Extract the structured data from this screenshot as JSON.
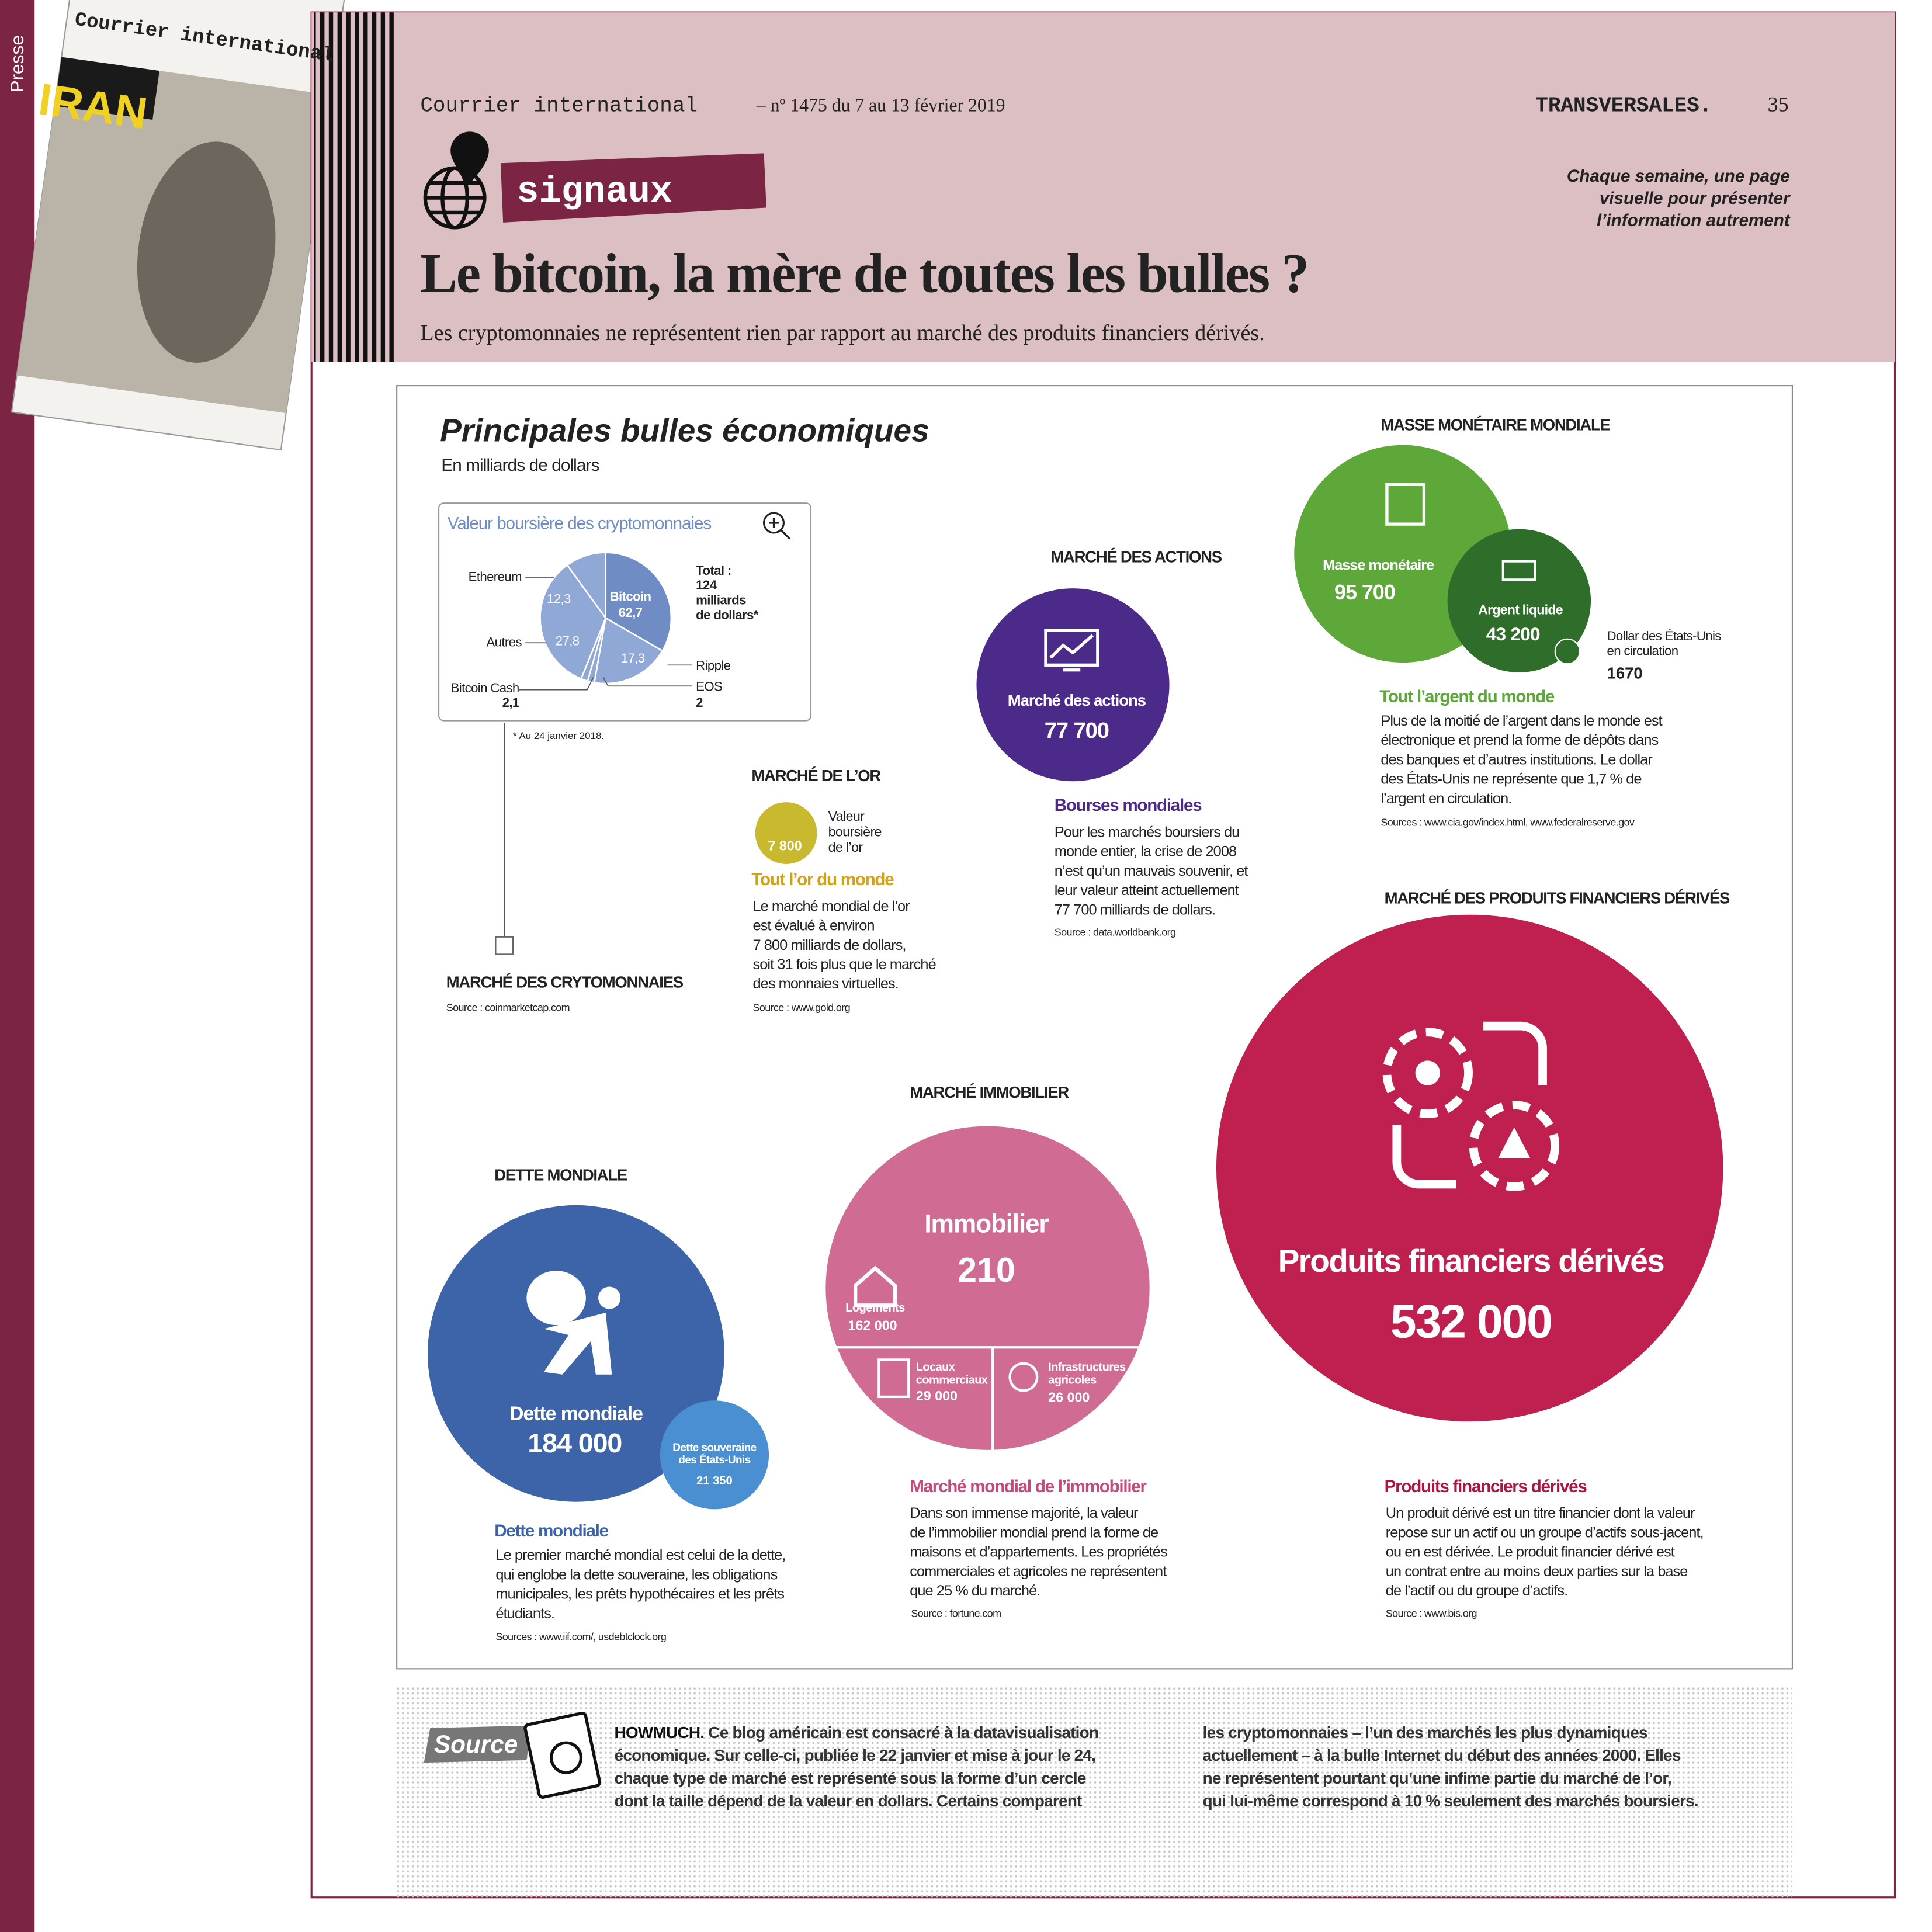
{
  "sidebar": {
    "label": "Presse"
  },
  "cover": {
    "brand": "Courrier international",
    "headline": "IRAN"
  },
  "header": {
    "publication": "Courrier international",
    "issue": "– nº 1475 du 7 au 13 février 2019",
    "section": "TRANSVERSALES.",
    "page": "35",
    "rubric": "signaux",
    "tagline": [
      "Chaque semaine, une page",
      "visuelle pour présenter",
      "l’information autrement"
    ],
    "title": "Le bitcoin, la mère de toutes les bulles ?",
    "subtitle": "Les cryptomonnaies ne représentent rien par rapport au marché des produits financiers dérivés."
  },
  "infographic": {
    "title": "Principales bulles économiques",
    "unit": "En milliards de dollars",
    "crypto": {
      "box_title": "Valeur boursière des cryptomonnaies",
      "slices": [
        {
          "label": "Bitcoin",
          "value": "62,7"
        },
        {
          "label": "Ripple",
          "value": "17,3"
        },
        {
          "label": "EOS",
          "value": "2"
        },
        {
          "label": "Bitcoin Cash",
          "value": "2,1"
        },
        {
          "label": "Autres",
          "value": "27,8"
        },
        {
          "label": "Ethereum",
          "value": "12,3"
        }
      ],
      "total": [
        "Total :",
        "124",
        "milliards",
        "de dollars*"
      ],
      "footnote": "* Au 24 janvier 2018.",
      "heading": "MARCHÉ DES CRYTOMONNAIES",
      "source": "Source : coinmarketcap.com"
    },
    "gold": {
      "heading": "MARCHÉ DE L’OR",
      "value": "7 800",
      "caption": [
        "Valeur",
        "boursière",
        "de l’or"
      ],
      "subheading": "Tout l’or du monde",
      "text": [
        "Le marché mondial de l’or",
        "est évalué à environ",
        "7 800 milliards de dollars,",
        "soit 31 fois plus que le marché",
        "des monnaies virtuelles."
      ],
      "source": "Source : www.gold.org"
    },
    "stocks": {
      "heading": "MARCHÉ DES ACTIONS",
      "label": "Marché des actions",
      "value": "77 700",
      "subheading": "Bourses mondiales",
      "text": [
        "Pour les marchés boursiers du",
        "monde entier, la crise de 2008",
        "n’est qu’un mauvais souvenir, et",
        "leur valeur atteint actuellement",
        "77 700 milliards de dollars."
      ],
      "source": "Source : data.worldbank.org"
    },
    "money": {
      "heading": "MASSE MONÉTAIRE MONDIALE",
      "label": "Masse monétaire",
      "value": "95 700",
      "cash_label": "Argent liquide",
      "cash_value": "43 200",
      "usd_label": [
        "Dollar des États-Unis",
        "en circulation"
      ],
      "usd_value": "1670",
      "subheading": "Tout l’argent du monde",
      "text": [
        "Plus de la moitié de l’argent dans le monde est",
        "électronique et prend la forme de dépôts dans",
        "des banques et d’autres institutions. Le dollar",
        "des États-Unis ne représente que 1,7 % de",
        "l’argent en circulation."
      ],
      "source": "Sources : www.cia.gov/index.html, www.federalreserve.gov"
    },
    "derivatives": {
      "heading": "MARCHÉ DES PRODUITS FINANCIERS DÉRIVÉS",
      "label": "Produits financiers dérivés",
      "value": "532 000",
      "subheading": "Produits financiers dérivés",
      "text": [
        "Un produit dérivé est un titre financier dont la valeur",
        "repose sur un actif ou un groupe d’actifs sous-jacent,",
        "ou en est dérivée. Le produit financier dérivé est",
        "un contrat entre au moins deux parties sur la base",
        "de l’actif ou du groupe d’actifs."
      ],
      "source": "Source : www.bis.org"
    },
    "realestate": {
      "heading": "MARCHÉ IMMOBILIER",
      "label": "Immobilier",
      "value": "210",
      "housing_label": "Logements",
      "housing_value": "162 000",
      "commercial_label": [
        "Locaux",
        "commerciaux"
      ],
      "commercial_value": "29 000",
      "agri_label": [
        "Infrastructures",
        "agricoles"
      ],
      "agri_value": "26 000",
      "subheading": "Marché mondial de l’immobilier",
      "text": [
        "Dans son immense majorité, la valeur",
        "de l’immobilier mondial prend la forme de",
        "maisons et d’appartements. Les propriétés",
        "commerciales et agricoles ne représentent",
        "que 25 % du marché."
      ],
      "source": "Source : fortune.com"
    },
    "debt": {
      "heading": "DETTE MONDIALE",
      "label": "Dette mondiale",
      "value": "184 000",
      "us_label": [
        "Dette souveraine",
        "des États-Unis"
      ],
      "us_value": "21 350",
      "subheading": "Dette mondiale",
      "text": [
        "Le premier marché mondial est celui de la dette,",
        "qui englobe la dette souveraine, les obligations",
        "municipales, les prêts hypothécaires et les prêts",
        "étudiants."
      ],
      "source": "Sources : www.iif.com/, usdebtclock.org"
    }
  },
  "footer": {
    "badge": "Source",
    "lead": "HOWMUCH.",
    "column1": [
      "Ce blog américain est consacré à la datavisualisation",
      "économique. Sur celle-ci, publiée le 22 janvier et mise à jour le 24,",
      "chaque type de marché est représenté sous la forme d’un cercle",
      "dont la taille dépend de la valeur en dollars. Certains comparent"
    ],
    "column2": [
      "les cryptomonnaies – l’un des marchés les plus dynamiques",
      "actuellement – à la bulle Internet du début des années 2000. Elles",
      "ne représentent pourtant qu’une infime partie du marché de l’or,",
      "qui lui-même correspond à 10 % seulement des marchés boursiers."
    ]
  }
}
